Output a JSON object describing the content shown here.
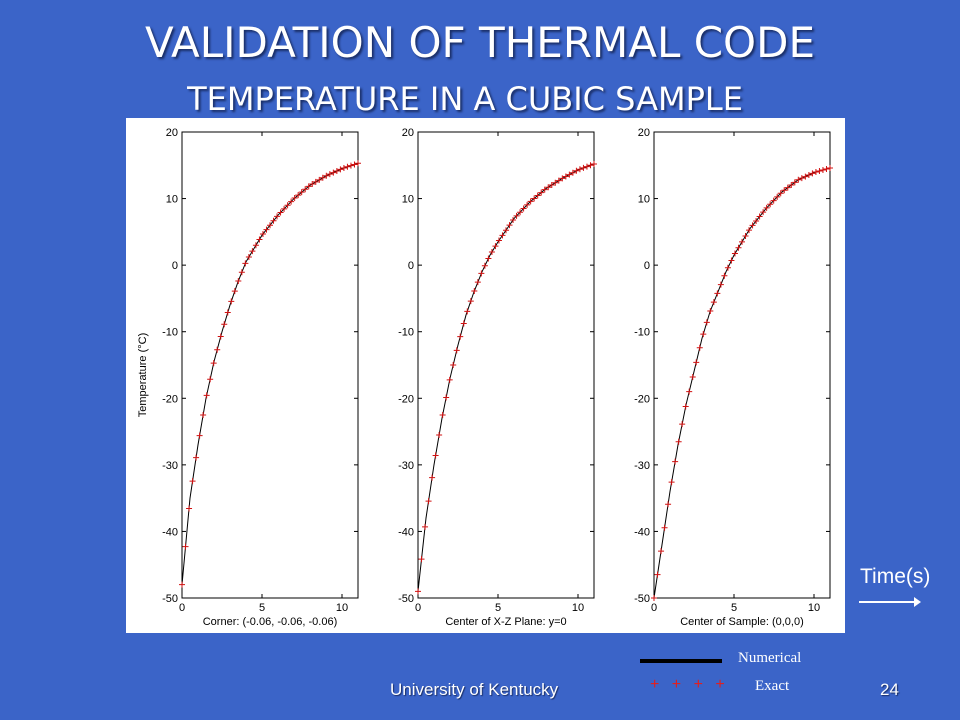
{
  "slide": {
    "title": "VALIDATION OF THERMAL CODE",
    "subtitle": "TEMPERATURE IN A CUBIC SAMPLE",
    "time_label": "Time(s)",
    "footer": "University of Kentucky",
    "page_number": "24",
    "legend": {
      "numerical": "Numerical",
      "exact": "Exact",
      "exact_marker": "+ + + +"
    }
  },
  "colors": {
    "background": "#3b64c8",
    "numerical": "#000000",
    "exact": "#d01010"
  },
  "chart_data": [
    {
      "type": "line",
      "xlabel": "Corner: (-0.06, -0.06, -0.06)",
      "ylabel": "Temperature (°C)",
      "xlim": [
        0,
        11
      ],
      "ylim": [
        -50,
        20
      ],
      "xticks": [
        0,
        5,
        10
      ],
      "yticks": [
        20,
        10,
        0,
        -10,
        -20,
        -30,
        -40,
        -50
      ],
      "grid": false,
      "x": [
        0,
        0.5,
        1,
        1.5,
        2,
        2.5,
        3,
        3.5,
        4,
        4.5,
        5,
        6,
        7,
        8,
        9,
        10,
        11
      ],
      "series": [
        {
          "name": "Numerical",
          "values": [
            -48,
            -35,
            -27,
            -20,
            -14.5,
            -10,
            -6,
            -2.5,
            0.5,
            2.5,
            4.5,
            7.5,
            10,
            12,
            13.4,
            14.5,
            15.3
          ]
        },
        {
          "name": "Exact",
          "values": [
            -48,
            -35,
            -27,
            -20,
            -14.5,
            -10,
            -6,
            -2.5,
            0.5,
            2.5,
            4.5,
            7.5,
            10,
            12,
            13.4,
            14.5,
            15.3
          ]
        }
      ]
    },
    {
      "type": "line",
      "xlabel": "Center of X-Z Plane: y=0",
      "ylabel": "",
      "xlim": [
        0,
        11
      ],
      "ylim": [
        -50,
        20
      ],
      "xticks": [
        0,
        5,
        10
      ],
      "yticks": [
        20,
        10,
        0,
        -10,
        -20,
        -30,
        -40,
        -50
      ],
      "grid": false,
      "x": [
        0,
        0.5,
        1,
        1.5,
        2,
        2.5,
        3,
        3.5,
        4,
        4.5,
        5,
        6,
        7,
        8,
        9,
        10,
        11
      ],
      "series": [
        {
          "name": "Numerical",
          "values": [
            -49,
            -38,
            -30,
            -23,
            -17,
            -12,
            -7.5,
            -4,
            -1,
            1.5,
            3.5,
            7,
            9.5,
            11.5,
            13,
            14.3,
            15.2
          ]
        },
        {
          "name": "Exact",
          "values": [
            -49,
            -38,
            -30,
            -23,
            -17,
            -12,
            -7.5,
            -4,
            -1,
            1.5,
            3.5,
            7,
            9.5,
            11.5,
            13,
            14.3,
            15.2
          ]
        }
      ]
    },
    {
      "type": "line",
      "xlabel": "Center of Sample: (0,0,0)",
      "ylabel": "",
      "xlim": [
        0,
        11
      ],
      "ylim": [
        -50,
        20
      ],
      "xticks": [
        0,
        5,
        10
      ],
      "yticks": [
        20,
        10,
        0,
        -10,
        -20,
        -30,
        -40,
        -50
      ],
      "grid": false,
      "x": [
        0,
        0.5,
        1,
        1.5,
        2,
        2.5,
        3,
        3.5,
        4,
        4.5,
        5,
        6,
        7,
        8,
        9,
        10,
        11
      ],
      "series": [
        {
          "name": "Numerical",
          "values": [
            -50,
            -42,
            -34,
            -27,
            -21,
            -16,
            -11,
            -7,
            -4,
            -1,
            1.5,
            5.5,
            8.5,
            11,
            12.8,
            13.9,
            14.6
          ]
        },
        {
          "name": "Exact",
          "values": [
            -50,
            -42,
            -34,
            -27,
            -21,
            -16,
            -11,
            -7,
            -4,
            -1,
            1.5,
            5.5,
            8.5,
            11,
            12.8,
            13.9,
            14.6
          ]
        }
      ]
    }
  ]
}
